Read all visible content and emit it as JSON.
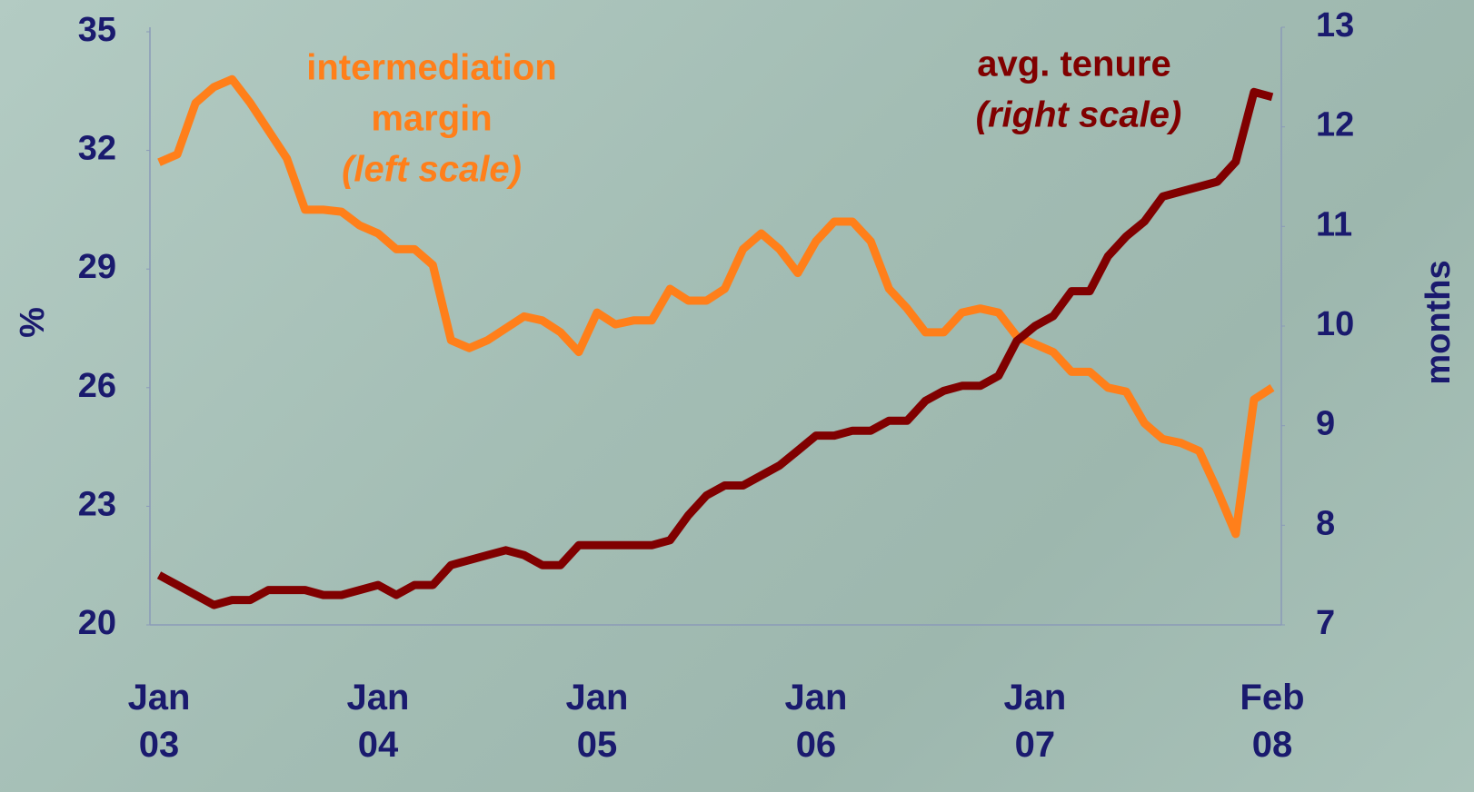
{
  "chart_data": {
    "type": "line",
    "y_label": "%",
    "y2_label": "months",
    "categories": [
      "Jan 03",
      null,
      null,
      null,
      null,
      null,
      null,
      null,
      null,
      null,
      null,
      null,
      "Jan 04",
      null,
      null,
      null,
      null,
      null,
      null,
      null,
      null,
      null,
      null,
      null,
      "Jan 05",
      null,
      null,
      null,
      null,
      null,
      null,
      null,
      null,
      null,
      null,
      null,
      "Jan 06",
      null,
      null,
      null,
      null,
      null,
      null,
      null,
      null,
      null,
      null,
      null,
      "Jan 07",
      null,
      null,
      null,
      null,
      null,
      null,
      null,
      null,
      null,
      null,
      null,
      null,
      "Feb 08"
    ],
    "series": [
      {
        "color": "#ff7f1a",
        "values": [
          31.7,
          31.9,
          33.2,
          33.6,
          33.8,
          33.2,
          32.5,
          31.8,
          30.5,
          30.5,
          30.45,
          30.1,
          29.9,
          29.5,
          29.5,
          29.1,
          27.2,
          27.0,
          27.2,
          27.5,
          27.8,
          27.7,
          27.4,
          26.9,
          27.9,
          27.6,
          27.7,
          27.7,
          28.5,
          28.2,
          28.2,
          28.5,
          29.5,
          29.9,
          29.5,
          28.9,
          29.7,
          30.2,
          30.2,
          29.7,
          28.5,
          28.0,
          27.4,
          27.4,
          27.9,
          28.0,
          27.9,
          27.3,
          27.1,
          26.9,
          26.4,
          26.4,
          26.0,
          25.9,
          25.1,
          24.7,
          24.6,
          24.4,
          23.4,
          22.3,
          25.7,
          26.0
        ]
      },
      {
        "color": "#800000",
        "axis": "y2",
        "values": [
          7.5,
          7.4,
          7.3,
          7.2,
          7.25,
          7.25,
          7.35,
          7.35,
          7.35,
          7.3,
          7.3,
          7.35,
          7.4,
          7.3,
          7.4,
          7.4,
          7.6,
          7.65,
          7.7,
          7.75,
          7.7,
          7.6,
          7.6,
          7.8,
          7.8,
          7.8,
          7.8,
          7.8,
          7.85,
          8.1,
          8.3,
          8.4,
          8.4,
          8.5,
          8.6,
          8.75,
          8.9,
          8.9,
          8.95,
          8.95,
          9.05,
          9.05,
          9.25,
          9.35,
          9.4,
          9.4,
          9.5,
          9.85,
          10.0,
          10.1,
          10.35,
          10.35,
          10.7,
          10.9,
          11.05,
          11.3,
          11.35,
          11.4,
          11.45,
          11.65,
          12.35,
          12.3
        ]
      }
    ],
    "annotations": [
      {
        "text": "intermediation",
        "color": "#ff7f1a",
        "italic": false
      },
      {
        "text": "margin",
        "color": "#ff7f1a",
        "italic": false
      },
      {
        "text": "(left scale)",
        "color": "#ff7f1a",
        "italic": true
      },
      {
        "text": "avg. tenure",
        "color": "#800000",
        "italic": false
      },
      {
        "text": "(right scale)",
        "color": "#800000",
        "italic": true
      }
    ],
    "ylim": [
      20,
      35
    ],
    "yticks": [
      20,
      23,
      26,
      29,
      32,
      35
    ],
    "y2lim": [
      7,
      13
    ],
    "y2ticks": [
      7,
      8,
      9,
      10,
      11,
      12,
      13
    ],
    "grid": false
  }
}
